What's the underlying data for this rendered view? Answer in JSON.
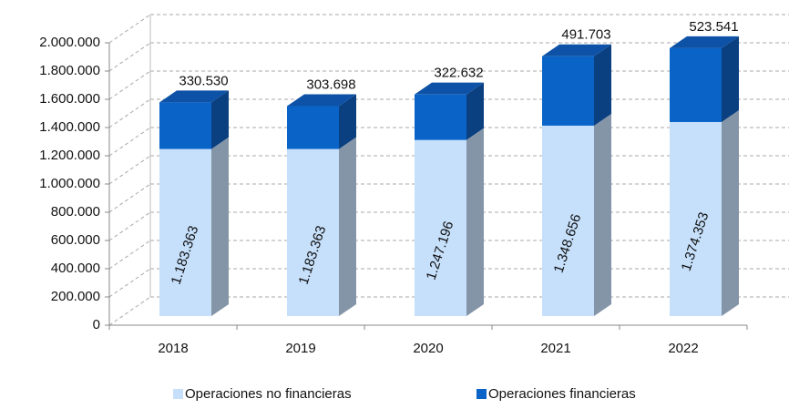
{
  "chart_data": {
    "type": "bar",
    "stacked": true,
    "three_d": true,
    "categories": [
      "2018",
      "2019",
      "2020",
      "2021",
      "2022"
    ],
    "series": [
      {
        "name": "Operaciones no financieras",
        "color": "#c6e0fb",
        "values": [
          1183363,
          1183363,
          1247196,
          1348656,
          1374353
        ],
        "value_labels": [
          "1.183.363",
          "1.183.363",
          "1.247.196",
          "1.348.656",
          "1.374.353"
        ]
      },
      {
        "name": "Operaciones financieras",
        "color": "#0a64c8",
        "values": [
          330530,
          303698,
          322632,
          491703,
          523541
        ],
        "value_labels": [
          "330.530",
          "303.698",
          "322.632",
          "491.703",
          "523.541"
        ]
      }
    ],
    "ylim": [
      0,
      2000000
    ],
    "yticks": [
      0,
      {
        "value": 200000,
        "label": "200.000"
      },
      {
        "value": 400000,
        "label": "400.000"
      },
      {
        "value": 600000,
        "label": "600.000"
      },
      {
        "value": 800000,
        "label": "800.000"
      },
      {
        "value": 1000000,
        "label": "1.000.000"
      },
      {
        "value": 1200000,
        "label": "1.200.000"
      },
      {
        "value": 1400000,
        "label": "1.400.000"
      },
      {
        "value": 1600000,
        "label": "1.600.000"
      },
      {
        "value": 1800000,
        "label": "1.800.000"
      },
      {
        "value": 2000000,
        "label": "2.000.000"
      }
    ],
    "grid": true,
    "legend": "bottom"
  }
}
